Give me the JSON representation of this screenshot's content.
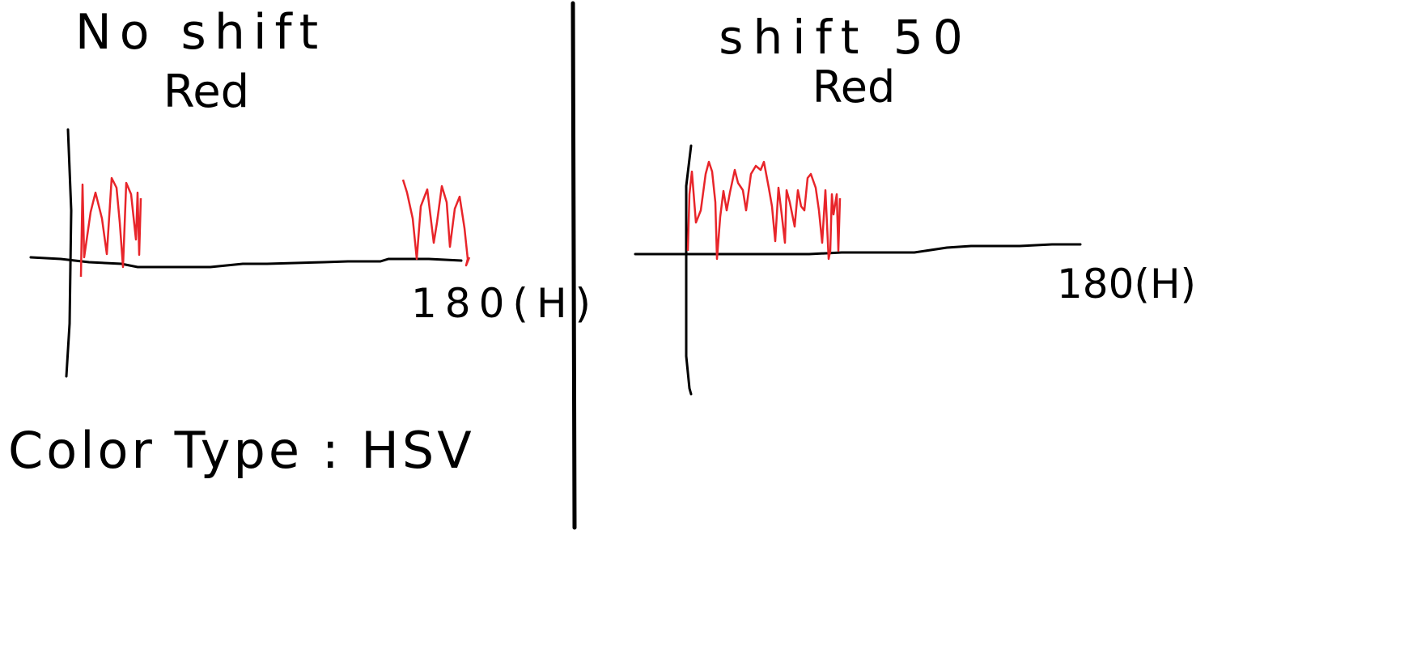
{
  "left_panel": {
    "title": "No shift",
    "subtitle": "Red",
    "axis_end_label": "180(H)",
    "note": "Color Type : HSV"
  },
  "right_panel": {
    "title": "shift 50",
    "subtitle": "Red",
    "axis_end_label": "180(H)"
  },
  "colors": {
    "ink": "#000000",
    "peaks": "#e8252a",
    "background": "#ffffff"
  }
}
